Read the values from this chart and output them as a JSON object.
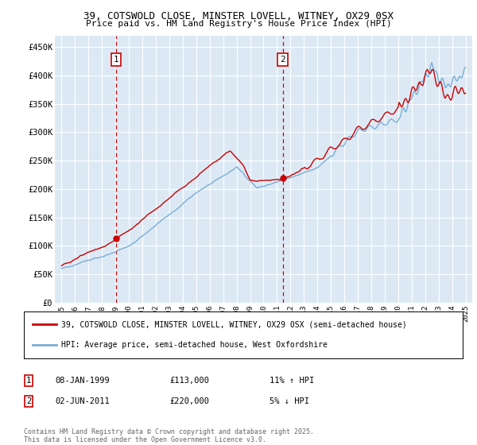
{
  "title1": "39, COTSWOLD CLOSE, MINSTER LOVELL, WITNEY, OX29 0SX",
  "title2": "Price paid vs. HM Land Registry's House Price Index (HPI)",
  "ylabel_ticks": [
    "£0",
    "£50K",
    "£100K",
    "£150K",
    "£200K",
    "£250K",
    "£300K",
    "£350K",
    "£400K",
    "£450K"
  ],
  "ytick_vals": [
    0,
    50000,
    100000,
    150000,
    200000,
    250000,
    300000,
    350000,
    400000,
    450000
  ],
  "ylim": [
    0,
    470000
  ],
  "xlim_start": 1994.5,
  "xlim_end": 2025.5,
  "bg_color": "#dce9f5",
  "grid_color": "#ffffff",
  "red_line_color": "#cc0000",
  "blue_line_color": "#7aadd4",
  "sale1_x": 1999.03,
  "sale1_y": 113000,
  "sale2_x": 2011.42,
  "sale2_y": 220000,
  "legend_line1": "39, COTSWOLD CLOSE, MINSTER LOVELL, WITNEY, OX29 0SX (semi-detached house)",
  "legend_line2": "HPI: Average price, semi-detached house, West Oxfordshire",
  "sale1_date": "08-JAN-1999",
  "sale1_price": "£113,000",
  "sale1_hpi": "11% ↑ HPI",
  "sale2_date": "02-JUN-2011",
  "sale2_price": "£220,000",
  "sale2_hpi": "5% ↓ HPI",
  "footnote": "Contains HM Land Registry data © Crown copyright and database right 2025.\nThis data is licensed under the Open Government Licence v3.0.",
  "xticks": [
    1995,
    1996,
    1997,
    1998,
    1999,
    2000,
    2001,
    2002,
    2003,
    2004,
    2005,
    2006,
    2007,
    2008,
    2009,
    2010,
    2011,
    2012,
    2013,
    2014,
    2015,
    2016,
    2017,
    2018,
    2019,
    2020,
    2021,
    2022,
    2023,
    2024,
    2025
  ]
}
